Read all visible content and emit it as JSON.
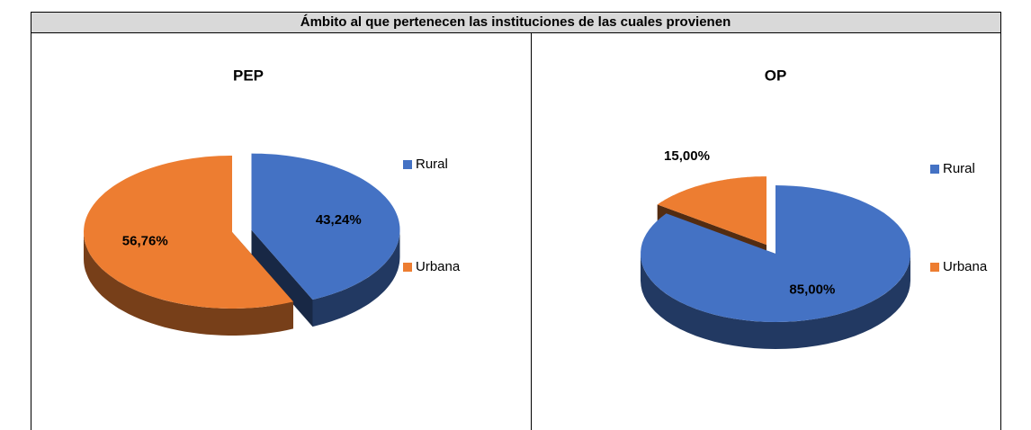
{
  "header": {
    "title": "Ámbito al que pertenecen las instituciones de las cuales provienen"
  },
  "chart_data": [
    {
      "type": "pie",
      "title": "PEP",
      "categories": [
        "Rural",
        "Urbana"
      ],
      "values": [
        43.24,
        56.76
      ],
      "value_labels": [
        "43,24%",
        "56,76%"
      ],
      "colors": [
        "#4472c4",
        "#ed7d31"
      ],
      "legend": "right"
    },
    {
      "type": "pie",
      "title": "OP",
      "categories": [
        "Rural",
        "Urbana"
      ],
      "values": [
        85,
        15
      ],
      "value_labels": [
        "85,00%",
        "15,00%"
      ],
      "colors": [
        "#4472c4",
        "#ed7d31"
      ],
      "legend": "right"
    }
  ]
}
